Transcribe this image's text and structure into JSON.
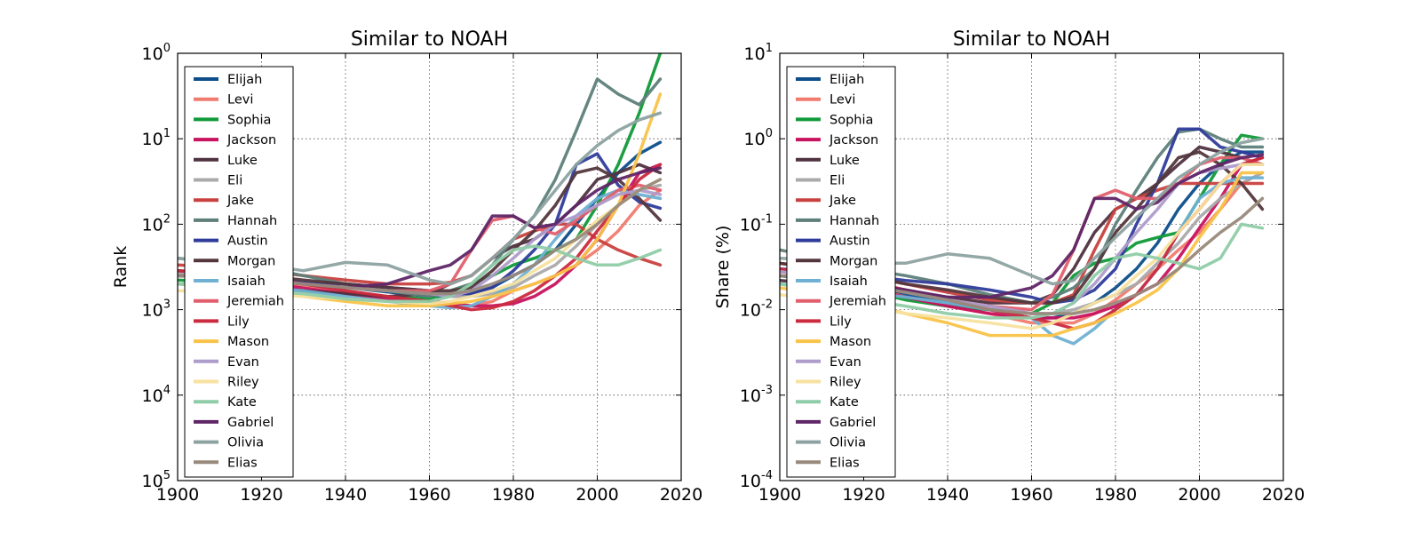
{
  "chart_data": [
    {
      "type": "line",
      "title": "Similar to NOAH",
      "ylabel": "Rank",
      "xlabel": "",
      "xlim": [
        1900,
        2020
      ],
      "xticks": [
        "1900",
        "1920",
        "1940",
        "1960",
        "1980",
        "2000",
        "2020"
      ],
      "yscale": "log",
      "yinverted": true,
      "ylim": [
        1,
        100000
      ],
      "yticks": [
        {
          "base": "10",
          "exp": "0",
          "value": 1
        },
        {
          "base": "10",
          "exp": "1",
          "value": 10
        },
        {
          "base": "10",
          "exp": "2",
          "value": 100
        },
        {
          "base": "10",
          "exp": "3",
          "value": 1000
        },
        {
          "base": "10",
          "exp": "4",
          "value": 10000
        },
        {
          "base": "10",
          "exp": "5",
          "value": 100000
        }
      ],
      "grid": true,
      "legend": "upper-left",
      "x": [
        1900,
        1910,
        1920,
        1930,
        1940,
        1950,
        1960,
        1965,
        1970,
        1975,
        1980,
        1985,
        1990,
        1995,
        2000,
        2005,
        2010,
        2015
      ],
      "series": [
        {
          "name": "Elijah",
          "color": "#0d4e8a",
          "values": [
            350,
            380,
            420,
            500,
            550,
            620,
            700,
            700,
            650,
            550,
            400,
            300,
            200,
            100,
            50,
            25,
            15,
            11
          ]
        },
        {
          "name": "Levi",
          "color": "#f07b6e",
          "values": [
            400,
            420,
            460,
            520,
            600,
            700,
            800,
            850,
            900,
            800,
            600,
            500,
            400,
            300,
            200,
            120,
            60,
            40
          ]
        },
        {
          "name": "Sophia",
          "color": "#0f9a38",
          "values": [
            450,
            480,
            520,
            600,
            650,
            700,
            750,
            600,
            500,
            400,
            300,
            250,
            200,
            150,
            60,
            20,
            5,
            1
          ]
        },
        {
          "name": "Jackson",
          "color": "#c8135f",
          "values": [
            400,
            430,
            480,
            560,
            650,
            750,
            800,
            850,
            900,
            900,
            850,
            700,
            500,
            300,
            150,
            60,
            25,
            20
          ]
        },
        {
          "name": "Luke",
          "color": "#4f3240",
          "values": [
            500,
            520,
            550,
            600,
            650,
            700,
            650,
            500,
            400,
            250,
            180,
            150,
            100,
            60,
            30,
            25,
            20,
            25
          ]
        },
        {
          "name": "Eli",
          "color": "#aaaaaa",
          "values": [
            380,
            400,
            450,
            500,
            560,
            600,
            650,
            700,
            700,
            650,
            550,
            400,
            300,
            180,
            100,
            60,
            40,
            35
          ]
        },
        {
          "name": "Jake",
          "color": "#c9413f",
          "values": [
            300,
            320,
            350,
            400,
            450,
            500,
            500,
            480,
            400,
            250,
            150,
            120,
            100,
            100,
            150,
            200,
            250,
            300
          ]
        },
        {
          "name": "Hannah",
          "color": "#5e7f7a",
          "values": [
            250,
            280,
            320,
            400,
            500,
            600,
            700,
            600,
            500,
            300,
            150,
            80,
            30,
            8,
            2,
            3,
            4,
            2
          ]
        },
        {
          "name": "Austin",
          "color": "#2f3c9b",
          "values": [
            400,
            420,
            450,
            480,
            500,
            550,
            600,
            650,
            650,
            550,
            350,
            200,
            100,
            20,
            15,
            35,
            55,
            65
          ]
        },
        {
          "name": "Morgan",
          "color": "#53373d",
          "values": [
            350,
            370,
            400,
            450,
            500,
            550,
            600,
            600,
            550,
            350,
            200,
            120,
            60,
            25,
            22,
            30,
            50,
            90
          ]
        },
        {
          "name": "Isaiah",
          "color": "#6fb0d3",
          "values": [
            500,
            520,
            550,
            600,
            700,
            800,
            900,
            950,
            900,
            700,
            500,
            300,
            150,
            80,
            50,
            40,
            45,
            50
          ]
        },
        {
          "name": "Jeremiah",
          "color": "#e15f6d",
          "values": [
            400,
            420,
            450,
            500,
            550,
            600,
            600,
            500,
            200,
            90,
            80,
            110,
            130,
            90,
            60,
            40,
            35,
            40
          ]
        },
        {
          "name": "Lily",
          "color": "#cc2a3e",
          "values": [
            350,
            380,
            420,
            500,
            600,
            700,
            800,
            900,
            1000,
            950,
            800,
            600,
            400,
            250,
            120,
            60,
            30,
            20
          ]
        },
        {
          "name": "Mason",
          "color": "#f9c349",
          "values": [
            500,
            540,
            600,
            700,
            800,
            900,
            900,
            850,
            800,
            700,
            600,
            500,
            400,
            300,
            150,
            60,
            15,
            3
          ]
        },
        {
          "name": "Evan",
          "color": "#ae9ccb",
          "values": [
            400,
            420,
            450,
            500,
            550,
            600,
            650,
            700,
            600,
            400,
            250,
            150,
            100,
            80,
            60,
            45,
            40,
            45
          ]
        },
        {
          "name": "Riley",
          "color": "#f7e29f",
          "values": [
            600,
            620,
            650,
            700,
            750,
            800,
            850,
            800,
            700,
            600,
            500,
            350,
            250,
            150,
            90,
            60,
            40,
            30
          ]
        },
        {
          "name": "Kate",
          "color": "#8fcca8",
          "values": [
            500,
            550,
            600,
            650,
            750,
            800,
            800,
            700,
            500,
            300,
            200,
            180,
            200,
            250,
            300,
            300,
            250,
            200
          ]
        },
        {
          "name": "Gabriel",
          "color": "#5f2667",
          "values": [
            400,
            420,
            450,
            500,
            550,
            500,
            350,
            300,
            200,
            80,
            80,
            110,
            100,
            60,
            40,
            30,
            25,
            22
          ]
        },
        {
          "name": "Olivia",
          "color": "#8da3a1",
          "values": [
            250,
            270,
            300,
            350,
            280,
            300,
            450,
            500,
            400,
            250,
            150,
            80,
            40,
            20,
            12,
            8,
            6,
            5
          ]
        },
        {
          "name": "Elias",
          "color": "#988a7c",
          "values": [
            400,
            420,
            450,
            500,
            550,
            600,
            650,
            650,
            600,
            500,
            400,
            300,
            200,
            150,
            100,
            60,
            40,
            30
          ]
        }
      ]
    },
    {
      "type": "line",
      "title": "Similar to NOAH",
      "ylabel": "Share (%)",
      "xlabel": "",
      "xlim": [
        1900,
        2020
      ],
      "xticks": [
        "1900",
        "1920",
        "1940",
        "1960",
        "1980",
        "2000",
        "2020"
      ],
      "yscale": "log",
      "ylim": [
        0.0001,
        10
      ],
      "yticks": [
        {
          "base": "10",
          "exp": "1",
          "value": 10
        },
        {
          "base": "10",
          "exp": "0",
          "value": 1
        },
        {
          "base": "10",
          "exp": "-1",
          "value": 0.1
        },
        {
          "base": "10",
          "exp": "-2",
          "value": 0.01
        },
        {
          "base": "10",
          "exp": "-3",
          "value": 0.001
        },
        {
          "base": "10",
          "exp": "-4",
          "value": 0.0001
        }
      ],
      "grid": true,
      "legend": "upper-left",
      "x": [
        1900,
        1910,
        1920,
        1930,
        1940,
        1950,
        1960,
        1965,
        1970,
        1975,
        1980,
        1985,
        1990,
        1995,
        2000,
        2005,
        2010,
        2015
      ],
      "series": [
        {
          "name": "Elijah",
          "color": "#0d4e8a",
          "values": [
            0.03,
            0.025,
            0.02,
            0.015,
            0.012,
            0.01,
            0.008,
            0.008,
            0.009,
            0.012,
            0.018,
            0.03,
            0.06,
            0.15,
            0.3,
            0.5,
            0.7,
            0.7
          ]
        },
        {
          "name": "Levi",
          "color": "#f07b6e",
          "values": [
            0.028,
            0.024,
            0.019,
            0.014,
            0.011,
            0.009,
            0.007,
            0.007,
            0.007,
            0.009,
            0.013,
            0.02,
            0.03,
            0.05,
            0.08,
            0.15,
            0.3,
            0.4
          ]
        },
        {
          "name": "Sophia",
          "color": "#0f9a38",
          "values": [
            0.025,
            0.021,
            0.017,
            0.013,
            0.011,
            0.01,
            0.009,
            0.012,
            0.025,
            0.035,
            0.04,
            0.06,
            0.07,
            0.08,
            0.2,
            0.5,
            1.1,
            1.0
          ]
        },
        {
          "name": "Jackson",
          "color": "#c8135f",
          "values": [
            0.028,
            0.023,
            0.018,
            0.014,
            0.011,
            0.009,
            0.008,
            0.008,
            0.008,
            0.009,
            0.011,
            0.015,
            0.02,
            0.04,
            0.09,
            0.2,
            0.5,
            0.6
          ]
        },
        {
          "name": "Luke",
          "color": "#4f3240",
          "values": [
            0.022,
            0.02,
            0.018,
            0.016,
            0.014,
            0.012,
            0.012,
            0.015,
            0.03,
            0.08,
            0.15,
            0.2,
            0.3,
            0.5,
            0.8,
            0.7,
            0.6,
            0.5
          ]
        },
        {
          "name": "Eli",
          "color": "#aaaaaa",
          "values": [
            0.03,
            0.026,
            0.021,
            0.017,
            0.013,
            0.011,
            0.009,
            0.009,
            0.01,
            0.012,
            0.015,
            0.02,
            0.035,
            0.06,
            0.12,
            0.2,
            0.3,
            0.4
          ]
        },
        {
          "name": "Jake",
          "color": "#c9413f",
          "values": [
            0.035,
            0.03,
            0.025,
            0.02,
            0.016,
            0.013,
            0.012,
            0.012,
            0.015,
            0.05,
            0.15,
            0.2,
            0.25,
            0.3,
            0.3,
            0.3,
            0.3,
            0.3
          ]
        },
        {
          "name": "Hannah",
          "color": "#5e7f7a",
          "values": [
            0.05,
            0.04,
            0.03,
            0.025,
            0.02,
            0.015,
            0.012,
            0.014,
            0.018,
            0.03,
            0.1,
            0.25,
            0.6,
            1.2,
            1.3,
            1.0,
            0.8,
            0.8
          ]
        },
        {
          "name": "Austin",
          "color": "#2f3c9b",
          "values": [
            0.03,
            0.028,
            0.025,
            0.022,
            0.02,
            0.017,
            0.014,
            0.012,
            0.013,
            0.017,
            0.03,
            0.1,
            0.3,
            1.3,
            1.3,
            0.8,
            0.7,
            0.6
          ]
        },
        {
          "name": "Morgan",
          "color": "#53373d",
          "values": [
            0.035,
            0.03,
            0.025,
            0.02,
            0.017,
            0.014,
            0.012,
            0.012,
            0.014,
            0.03,
            0.08,
            0.15,
            0.3,
            0.6,
            0.7,
            0.5,
            0.3,
            0.15
          ]
        },
        {
          "name": "Isaiah",
          "color": "#6fb0d3",
          "values": [
            0.02,
            0.018,
            0.016,
            0.014,
            0.012,
            0.01,
            0.008,
            0.005,
            0.004,
            0.006,
            0.01,
            0.015,
            0.03,
            0.08,
            0.2,
            0.3,
            0.35,
            0.35
          ]
        },
        {
          "name": "Jeremiah",
          "color": "#e15f6d",
          "values": [
            0.028,
            0.024,
            0.02,
            0.016,
            0.013,
            0.011,
            0.01,
            0.015,
            0.05,
            0.2,
            0.25,
            0.2,
            0.2,
            0.3,
            0.5,
            0.6,
            0.6,
            0.5
          ]
        },
        {
          "name": "Lily",
          "color": "#cc2a3e",
          "values": [
            0.03,
            0.026,
            0.022,
            0.017,
            0.013,
            0.01,
            0.008,
            0.007,
            0.006,
            0.007,
            0.01,
            0.015,
            0.03,
            0.08,
            0.15,
            0.3,
            0.5,
            0.6
          ]
        },
        {
          "name": "Mason",
          "color": "#f9c349",
          "values": [
            0.018,
            0.015,
            0.012,
            0.009,
            0.007,
            0.005,
            0.005,
            0.005,
            0.006,
            0.007,
            0.009,
            0.012,
            0.017,
            0.03,
            0.07,
            0.15,
            0.4,
            0.4
          ]
        },
        {
          "name": "Evan",
          "color": "#ae9ccb",
          "values": [
            0.028,
            0.024,
            0.02,
            0.016,
            0.013,
            0.011,
            0.009,
            0.009,
            0.012,
            0.02,
            0.04,
            0.08,
            0.15,
            0.3,
            0.4,
            0.45,
            0.5,
            0.5
          ]
        },
        {
          "name": "Riley",
          "color": "#f7e29f",
          "values": [
            0.015,
            0.013,
            0.011,
            0.009,
            0.008,
            0.007,
            0.006,
            0.007,
            0.009,
            0.012,
            0.015,
            0.025,
            0.04,
            0.08,
            0.15,
            0.3,
            0.5,
            0.5
          ]
        },
        {
          "name": "Kate",
          "color": "#8fcca8",
          "values": [
            0.02,
            0.016,
            0.013,
            0.011,
            0.009,
            0.008,
            0.008,
            0.009,
            0.012,
            0.025,
            0.04,
            0.045,
            0.04,
            0.035,
            0.03,
            0.04,
            0.1,
            0.09
          ]
        },
        {
          "name": "Gabriel",
          "color": "#5f2667",
          "values": [
            0.025,
            0.022,
            0.02,
            0.017,
            0.014,
            0.014,
            0.018,
            0.025,
            0.05,
            0.2,
            0.2,
            0.15,
            0.18,
            0.3,
            0.4,
            0.5,
            0.6,
            0.65
          ]
        },
        {
          "name": "Olivia",
          "color": "#8da3a1",
          "values": [
            0.04,
            0.038,
            0.035,
            0.035,
            0.045,
            0.04,
            0.025,
            0.02,
            0.022,
            0.04,
            0.07,
            0.12,
            0.2,
            0.35,
            0.5,
            0.7,
            0.9,
            1.0
          ]
        },
        {
          "name": "Elias",
          "color": "#988a7c",
          "values": [
            0.025,
            0.022,
            0.019,
            0.016,
            0.013,
            0.01,
            0.009,
            0.009,
            0.009,
            0.01,
            0.012,
            0.015,
            0.02,
            0.03,
            0.05,
            0.08,
            0.12,
            0.2
          ]
        }
      ]
    }
  ]
}
